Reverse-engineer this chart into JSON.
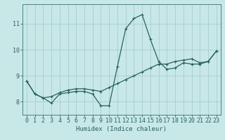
{
  "xlabel": "Humidex (Indice chaleur)",
  "background_color": "#c8e8e8",
  "grid_color": "#a8cccc",
  "line_color": "#2a6060",
  "spine_color": "#4a8080",
  "xlim": [
    -0.5,
    23.5
  ],
  "ylim": [
    7.5,
    11.75
  ],
  "yticks": [
    8,
    9,
    10,
    11
  ],
  "xticks": [
    0,
    1,
    2,
    3,
    4,
    5,
    6,
    7,
    8,
    9,
    10,
    11,
    12,
    13,
    14,
    15,
    16,
    17,
    18,
    19,
    20,
    21,
    22,
    23
  ],
  "line1_x": [
    0,
    1,
    2,
    3,
    4,
    5,
    6,
    7,
    8,
    9,
    10,
    11,
    12,
    13,
    14,
    15,
    16,
    17,
    18,
    19,
    20,
    21,
    22,
    23
  ],
  "line1_y": [
    8.8,
    8.3,
    8.15,
    7.95,
    8.3,
    8.35,
    8.4,
    8.4,
    8.3,
    7.85,
    7.85,
    9.35,
    10.8,
    11.2,
    11.35,
    10.4,
    9.55,
    9.25,
    9.3,
    9.5,
    9.45,
    9.45,
    9.55,
    9.95
  ],
  "line2_x": [
    0,
    1,
    2,
    3,
    4,
    5,
    6,
    7,
    8,
    9,
    10,
    11,
    12,
    13,
    14,
    15,
    16,
    17,
    18,
    19,
    20,
    21,
    22,
    23
  ],
  "line2_y": [
    8.8,
    8.3,
    8.15,
    8.2,
    8.35,
    8.45,
    8.5,
    8.5,
    8.45,
    8.4,
    8.55,
    8.7,
    8.85,
    9.0,
    9.15,
    9.3,
    9.45,
    9.45,
    9.55,
    9.6,
    9.65,
    9.5,
    9.55,
    9.95
  ],
  "xlabel_fontsize": 6.5,
  "tick_fontsize": 6,
  "marker_size": 2.5,
  "line_width": 0.9
}
